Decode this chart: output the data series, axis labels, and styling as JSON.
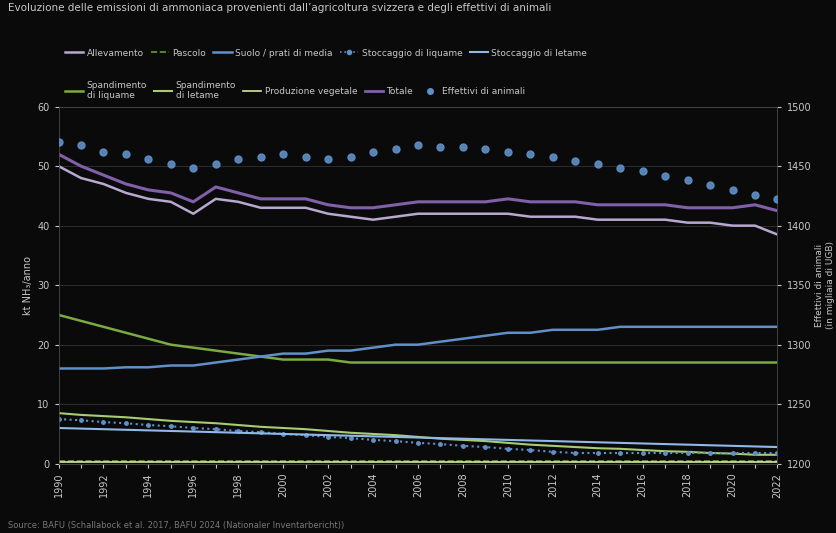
{
  "title": "Evoluzione delle emissioni di ammoniaca provenienti dall’agricoltura svizzera e degli effettivi di animali",
  "ylabel_left": "kt NH₃/anno",
  "ylabel_right": "Effettivi di animali\n(in migliaia di UGB)",
  "source": "Source: BAFU (Schallabock et al. 2017, BAFU 2024 (Nationaler Inventarbericht))",
  "background_color": "#0a0a0a",
  "plot_bg": "#0a0a0a",
  "grid_color": "#3a3a3a",
  "text_color": "#c8c8c8",
  "years": [
    1990,
    1991,
    1992,
    1993,
    1994,
    1995,
    1996,
    1997,
    1998,
    1999,
    2000,
    2001,
    2002,
    2003,
    2004,
    2005,
    2006,
    2007,
    2008,
    2009,
    2010,
    2011,
    2012,
    2013,
    2014,
    2015,
    2016,
    2017,
    2018,
    2019,
    2020,
    2021,
    2022
  ],
  "ylim_left": [
    0,
    60
  ],
  "ylim_right": [
    1200,
    1500
  ],
  "yticks_left": [
    0,
    10,
    20,
    30,
    40,
    50,
    60
  ],
  "yticks_right": [
    1200,
    1250,
    1300,
    1350,
    1400,
    1450,
    1500
  ],
  "allevamento": [
    50,
    48,
    47,
    45.5,
    44.5,
    44,
    42,
    44.5,
    44,
    43,
    43,
    43,
    42,
    41.5,
    41,
    41.5,
    42,
    42,
    42,
    42,
    42,
    41.5,
    41.5,
    41.5,
    41,
    41,
    41,
    41,
    40.5,
    40.5,
    40,
    40,
    38.5
  ],
  "totale": [
    52,
    50,
    48.5,
    47,
    46,
    45.5,
    44,
    46.5,
    45.5,
    44.5,
    44.5,
    44.5,
    43.5,
    43,
    43,
    43.5,
    44,
    44,
    44,
    44,
    44.5,
    44,
    44,
    44,
    43.5,
    43.5,
    43.5,
    43.5,
    43,
    43,
    43,
    43.5,
    42.5
  ],
  "suolo": [
    16,
    16,
    16,
    16.2,
    16.2,
    16.5,
    16.5,
    17,
    17.5,
    18,
    18.5,
    18.5,
    19,
    19,
    19.5,
    20,
    20,
    20.5,
    21,
    21.5,
    22,
    22,
    22.5,
    22.5,
    22.5,
    23,
    23,
    23,
    23,
    23,
    23,
    23,
    23
  ],
  "spand_liq": [
    25,
    24,
    23,
    22,
    21,
    20,
    19.5,
    19,
    18.5,
    18,
    17.5,
    17.5,
    17.5,
    17,
    17,
    17,
    17,
    17,
    17,
    17,
    17,
    17,
    17,
    17,
    17,
    17,
    17,
    17,
    17,
    17,
    17,
    17,
    17
  ],
  "spand_let": [
    8.5,
    8.2,
    8,
    7.8,
    7.5,
    7.2,
    7,
    6.8,
    6.5,
    6.2,
    6,
    5.8,
    5.5,
    5.2,
    5,
    4.8,
    4.5,
    4.2,
    4,
    3.8,
    3.5,
    3.2,
    3,
    2.8,
    2.6,
    2.5,
    2.3,
    2.1,
    2,
    1.8,
    1.7,
    1.5,
    1.5
  ],
  "stocc_liq": [
    7.5,
    7.3,
    7,
    6.8,
    6.5,
    6.3,
    6,
    5.8,
    5.5,
    5.3,
    5,
    4.8,
    4.5,
    4.3,
    4,
    3.8,
    3.5,
    3.3,
    3,
    2.8,
    2.5,
    2.3,
    2,
    1.8,
    1.8,
    1.8,
    1.8,
    1.8,
    1.8,
    1.8,
    1.8,
    1.8,
    1.8
  ],
  "stocc_let": [
    6,
    5.9,
    5.8,
    5.7,
    5.6,
    5.5,
    5.4,
    5.3,
    5.2,
    5.1,
    5,
    4.9,
    4.8,
    4.7,
    4.6,
    4.5,
    4.4,
    4.3,
    4.2,
    4.1,
    4,
    3.9,
    3.8,
    3.7,
    3.6,
    3.5,
    3.4,
    3.3,
    3.2,
    3.1,
    3,
    2.9,
    2.8
  ],
  "pascolo": [
    0.5,
    0.5,
    0.5,
    0.5,
    0.5,
    0.5,
    0.5,
    0.5,
    0.5,
    0.5,
    0.5,
    0.5,
    0.5,
    0.5,
    0.5,
    0.5,
    0.5,
    0.5,
    0.5,
    0.5,
    0.5,
    0.5,
    0.5,
    0.5,
    0.5,
    0.5,
    0.5,
    0.5,
    0.5,
    0.5,
    0.5,
    0.5,
    0.5
  ],
  "prod_veg": [
    0.3,
    0.3,
    0.3,
    0.3,
    0.3,
    0.3,
    0.3,
    0.3,
    0.3,
    0.3,
    0.3,
    0.3,
    0.3,
    0.3,
    0.3,
    0.3,
    0.3,
    0.3,
    0.3,
    0.3,
    0.3,
    0.3,
    0.3,
    0.3,
    0.3,
    0.3,
    0.3,
    0.3,
    0.3,
    0.3,
    0.3,
    0.3,
    0.3
  ],
  "effettivi": [
    1470,
    1468,
    1462,
    1460,
    1456,
    1452,
    1448,
    1452,
    1456,
    1458,
    1460,
    1458,
    1456,
    1458,
    1462,
    1464,
    1468,
    1466,
    1466,
    1464,
    1462,
    1460,
    1458,
    1454,
    1452,
    1448,
    1446,
    1442,
    1438,
    1434,
    1430,
    1426,
    1422
  ]
}
